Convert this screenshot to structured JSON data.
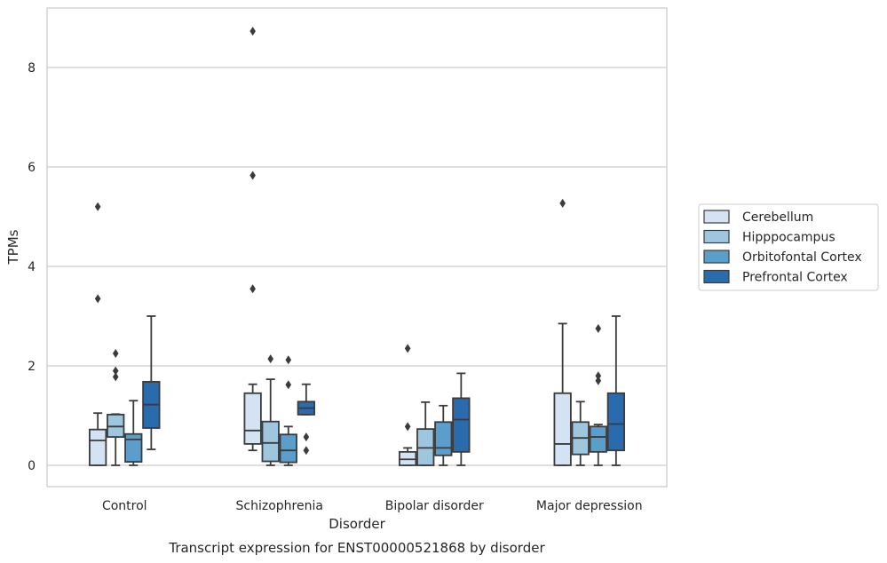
{
  "caption": "Transcript expression for ENST00000521868 by disorder",
  "chart_data": {
    "type": "box",
    "title": "",
    "xlabel": "Disorder",
    "ylabel": "TPMs",
    "ylim": [
      -0.42,
      9.3
    ],
    "yticks": [
      0,
      2,
      4,
      6,
      8
    ],
    "grid": "horizontal",
    "legend_placement": "right",
    "categories": [
      "Control",
      "Schizophrenia",
      "Bipolar disorder",
      "Major depression"
    ],
    "series": [
      {
        "name": "Cerebellum",
        "color": "#d4e3f3",
        "boxes": [
          {
            "whislo": 0.0,
            "q1": 0.0,
            "med": 0.5,
            "q3": 0.72,
            "whishi": 1.05,
            "fliers": [
              3.35,
              5.2
            ]
          },
          {
            "whislo": 0.3,
            "q1": 0.43,
            "med": 0.7,
            "q3": 1.45,
            "whishi": 1.63,
            "fliers": [
              3.55,
              5.83,
              8.73
            ]
          },
          {
            "whislo": 0.0,
            "q1": 0.0,
            "med": 0.12,
            "q3": 0.27,
            "whishi": 0.35,
            "fliers": [
              0.78,
              2.35
            ]
          },
          {
            "whislo": 0.0,
            "q1": 0.0,
            "med": 0.43,
            "q3": 1.45,
            "whishi": 2.85,
            "fliers": [
              5.27
            ]
          }
        ]
      },
      {
        "name": "Hipppocampus",
        "color": "#9ec6df",
        "boxes": [
          {
            "whislo": 0.0,
            "q1": 0.57,
            "med": 0.78,
            "q3": 1.02,
            "whishi": 1.03,
            "fliers": [
              1.78,
              1.9,
              2.25
            ]
          },
          {
            "whislo": 0.0,
            "q1": 0.08,
            "med": 0.45,
            "q3": 0.88,
            "whishi": 1.73,
            "fliers": [
              2.14
            ]
          },
          {
            "whislo": 0.0,
            "q1": 0.0,
            "med": 0.35,
            "q3": 0.73,
            "whishi": 1.27,
            "fliers": []
          },
          {
            "whislo": 0.0,
            "q1": 0.22,
            "med": 0.55,
            "q3": 0.87,
            "whishi": 1.28,
            "fliers": []
          }
        ]
      },
      {
        "name": "Orbitofontal Cortex",
        "color": "#5c9ecb",
        "boxes": [
          {
            "whislo": 0.0,
            "q1": 0.07,
            "med": 0.52,
            "q3": 0.63,
            "whishi": 1.3,
            "fliers": []
          },
          {
            "whislo": 0.0,
            "q1": 0.06,
            "med": 0.3,
            "q3": 0.62,
            "whishi": 0.78,
            "fliers": [
              1.62,
              2.12
            ]
          },
          {
            "whislo": 0.0,
            "q1": 0.2,
            "med": 0.35,
            "q3": 0.87,
            "whishi": 1.2,
            "fliers": []
          },
          {
            "whislo": 0.0,
            "q1": 0.27,
            "med": 0.57,
            "q3": 0.78,
            "whishi": 0.82,
            "fliers": [
              1.7,
              1.8,
              2.75
            ]
          }
        ]
      },
      {
        "name": "Prefrontal Cortex",
        "color": "#2a6bad",
        "boxes": [
          {
            "whislo": 0.32,
            "q1": 0.75,
            "med": 1.22,
            "q3": 1.68,
            "whishi": 3.0,
            "fliers": []
          },
          {
            "whislo": 1.02,
            "q1": 1.02,
            "med": 1.15,
            "q3": 1.28,
            "whishi": 1.63,
            "fliers": [
              0.3,
              0.57
            ]
          },
          {
            "whislo": 0.0,
            "q1": 0.27,
            "med": 0.92,
            "q3": 1.35,
            "whishi": 1.85,
            "fliers": []
          },
          {
            "whislo": 0.0,
            "q1": 0.3,
            "med": 0.83,
            "q3": 1.45,
            "whishi": 3.0,
            "fliers": []
          }
        ]
      }
    ]
  }
}
